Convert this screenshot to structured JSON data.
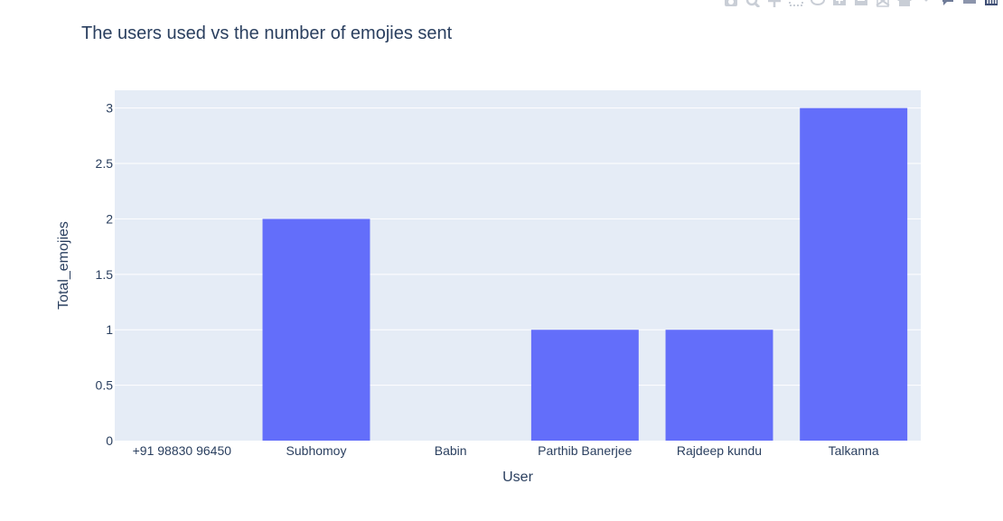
{
  "chart_data": {
    "type": "bar",
    "title": "The users used vs the number of emojies sent",
    "xlabel": "User",
    "ylabel": "Total_emojies",
    "categories": [
      "+91 98830 96450",
      "Subhomoy",
      "Babin",
      "Parthib Banerjee",
      "Rajdeep kundu",
      "Talkanna"
    ],
    "values": [
      0,
      2,
      0,
      1,
      1,
      3
    ],
    "ylim": [
      0,
      3.16
    ],
    "yticks": [
      0,
      0.5,
      1,
      1.5,
      2,
      2.5,
      3
    ],
    "ytick_labels": [
      "0",
      "0.5",
      "1",
      "1.5",
      "2",
      "2.5",
      "3"
    ],
    "grid": true,
    "colors": {
      "bar": "#636efa",
      "plot_bg": "#e5ecf6",
      "grid": "#ffffff",
      "text": "#2a3f5f"
    }
  },
  "modebar": {
    "icons": [
      "camera-icon",
      "zoom-icon",
      "pan-icon",
      "box-select-icon",
      "lasso-icon",
      "zoom-in-icon",
      "zoom-out-icon",
      "autoscale-icon",
      "reset-axes-icon",
      "spike-lines-icon",
      "hover-closest-icon",
      "hover-compare-icon",
      "plotly-logo-icon"
    ],
    "color": "#c9ced6",
    "logo_color": "#3f4f75"
  }
}
